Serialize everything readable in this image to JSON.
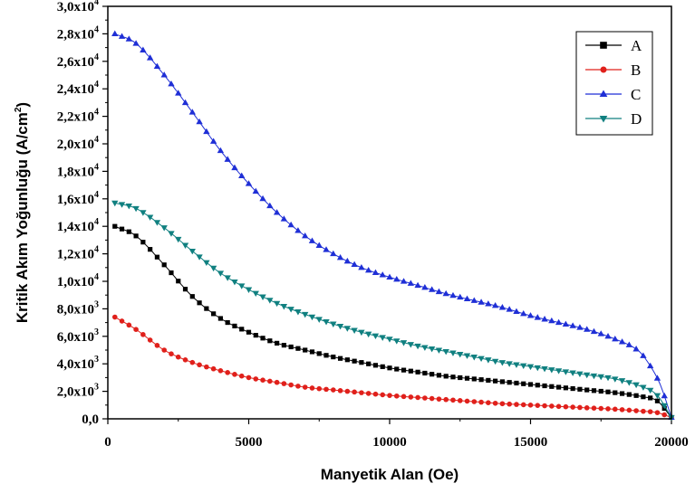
{
  "chart_data": {
    "type": "line",
    "xlabel": "Manyetik Alan (Oe)",
    "ylabel_main": "Kritik Akım Yoğunluğu (A/cm",
    "ylabel_sup": "2",
    "ylabel_end": ")",
    "xlim": [
      0,
      20000
    ],
    "ylim": [
      0,
      30000
    ],
    "x_ticks": [
      {
        "value": 0,
        "label": "0"
      },
      {
        "value": 5000,
        "label": "5000"
      },
      {
        "value": 10000,
        "label": "10000"
      },
      {
        "value": 15000,
        "label": "15000"
      },
      {
        "value": 20000,
        "label": "20000"
      }
    ],
    "y_ticks": [
      {
        "value": 0,
        "base": "0,0",
        "exp": ""
      },
      {
        "value": 2000,
        "base": "2,0x10",
        "exp": "3"
      },
      {
        "value": 4000,
        "base": "4,0x10",
        "exp": "3"
      },
      {
        "value": 6000,
        "base": "6,0x10",
        "exp": "3"
      },
      {
        "value": 8000,
        "base": "8,0x10",
        "exp": "3"
      },
      {
        "value": 10000,
        "base": "1,0x10",
        "exp": "4"
      },
      {
        "value": 12000,
        "base": "1,2x10",
        "exp": "4"
      },
      {
        "value": 14000,
        "base": "1,4x10",
        "exp": "4"
      },
      {
        "value": 16000,
        "base": "1,6x10",
        "exp": "4"
      },
      {
        "value": 18000,
        "base": "1,8x10",
        "exp": "4"
      },
      {
        "value": 20000,
        "base": "2,0x10",
        "exp": "4"
      },
      {
        "value": 22000,
        "base": "2,2x10",
        "exp": "4"
      },
      {
        "value": 24000,
        "base": "2,4x10",
        "exp": "4"
      },
      {
        "value": 26000,
        "base": "2,6x10",
        "exp": "4"
      },
      {
        "value": 28000,
        "base": "2,8x10",
        "exp": "4"
      },
      {
        "value": 30000,
        "base": "3,0x10",
        "exp": "4"
      }
    ],
    "grid": false,
    "legend_position": "top-right",
    "series": [
      {
        "name": "A",
        "color": "#000000",
        "marker": "square",
        "x": [
          250,
          1000,
          2000,
          3000,
          4000,
          5000,
          6000,
          7000,
          8000,
          9000,
          10000,
          11000,
          12000,
          13000,
          14000,
          15000,
          16000,
          17000,
          18000,
          19000,
          19500,
          20000
        ],
        "y": [
          14000,
          13300,
          11200,
          8900,
          7300,
          6300,
          5500,
          5000,
          4500,
          4100,
          3700,
          3400,
          3100,
          2900,
          2700,
          2500,
          2300,
          2100,
          1900,
          1600,
          1300,
          100
        ]
      },
      {
        "name": "B",
        "color": "#e0201b",
        "marker": "circle",
        "x": [
          250,
          1000,
          2000,
          3000,
          4000,
          5000,
          6000,
          7000,
          8000,
          9000,
          10000,
          11000,
          12000,
          13000,
          14000,
          15000,
          16000,
          17000,
          18000,
          19000,
          19500,
          20000
        ],
        "y": [
          7400,
          6500,
          5000,
          4100,
          3500,
          3000,
          2650,
          2300,
          2100,
          1900,
          1700,
          1550,
          1400,
          1250,
          1100,
          1000,
          900,
          800,
          700,
          550,
          450,
          100
        ]
      },
      {
        "name": "C",
        "color": "#1f2fd6",
        "marker": "triangle-up",
        "x": [
          250,
          1000,
          2000,
          3000,
          4000,
          5000,
          6000,
          7000,
          8000,
          9000,
          10000,
          11000,
          12000,
          13000,
          14000,
          15000,
          16000,
          17000,
          18000,
          18800,
          19200,
          19600,
          20000
        ],
        "y": [
          28000,
          27300,
          25000,
          22300,
          19500,
          17100,
          15000,
          13300,
          12000,
          11000,
          10300,
          9700,
          9100,
          8600,
          8100,
          7500,
          7000,
          6500,
          5800,
          5000,
          4000,
          2500,
          100
        ]
      },
      {
        "name": "D",
        "color": "#108080",
        "marker": "triangle-down",
        "x": [
          250,
          1000,
          2000,
          3000,
          4000,
          5000,
          6000,
          7000,
          8000,
          9000,
          10000,
          11000,
          12000,
          13000,
          14000,
          15000,
          16000,
          17000,
          18000,
          19000,
          19500,
          20000
        ],
        "y": [
          15700,
          15300,
          13900,
          12200,
          10600,
          9400,
          8400,
          7600,
          6900,
          6300,
          5800,
          5300,
          4900,
          4500,
          4100,
          3800,
          3500,
          3200,
          2900,
          2300,
          1700,
          100
        ]
      }
    ]
  }
}
